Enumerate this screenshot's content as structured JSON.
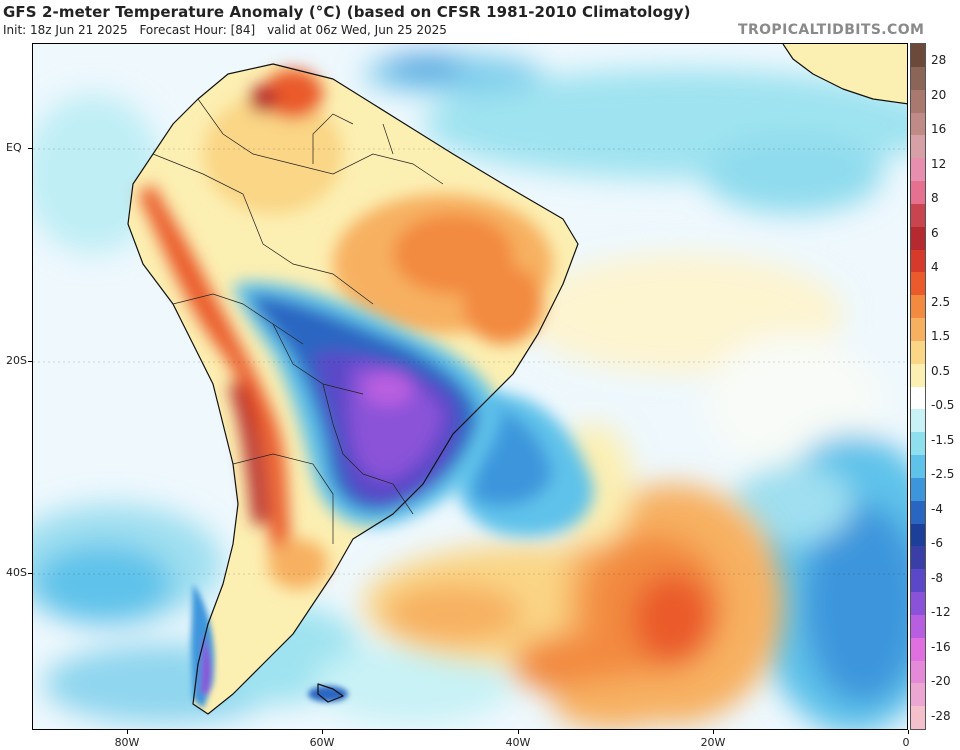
{
  "header": {
    "title": "GFS 2-meter Temperature Anomaly (°C) (based on CFSR 1981-2010 Climatology)",
    "init": "Init: 18z Jun 21 2025",
    "forecast_hour": "Forecast Hour: [84]",
    "valid": "valid at 06z Wed, Jun 25 2025",
    "watermark": "TROPICALTIDBITS.COM"
  },
  "axes": {
    "lat_labels": [
      "EQ",
      "20S",
      "40S"
    ],
    "lon_labels": [
      "80W",
      "60W",
      "40W",
      "20W",
      "0"
    ]
  },
  "colorbar": {
    "labels": [
      "28",
      "20",
      "16",
      "12",
      "8",
      "6",
      "4",
      "2.5",
      "1.5",
      "0.5",
      "-0.5",
      "-1.5",
      "-2.5",
      "-4",
      "-6",
      "-8",
      "-12",
      "-16",
      "-20",
      "-28"
    ],
    "colors": [
      "#6b4a3a",
      "#8a6558",
      "#a9786f",
      "#c08a86",
      "#d7a0a7",
      "#e88fb0",
      "#e67090",
      "#c8444f",
      "#b52a2f",
      "#d63a2a",
      "#ea5a2a",
      "#f28a40",
      "#f7b060",
      "#fad686",
      "#fcefb2",
      "#ffffff",
      "#c8f2f6",
      "#8fe0ee",
      "#5fc2ea",
      "#3d96dc",
      "#2966c2",
      "#1c3f9a",
      "#3a3fa8",
      "#5a48c8",
      "#8a52d8",
      "#b85ee0",
      "#e070e0",
      "#e58ad8",
      "#eba6d2",
      "#f3c0cc"
    ]
  },
  "legend_colors": {
    "cold_strong": "#8a52d8",
    "cold": "#2966c2",
    "cool": "#8fe0ee",
    "neutral": "#ffffff",
    "warm": "#fad686",
    "hot": "#ea5a2a"
  }
}
